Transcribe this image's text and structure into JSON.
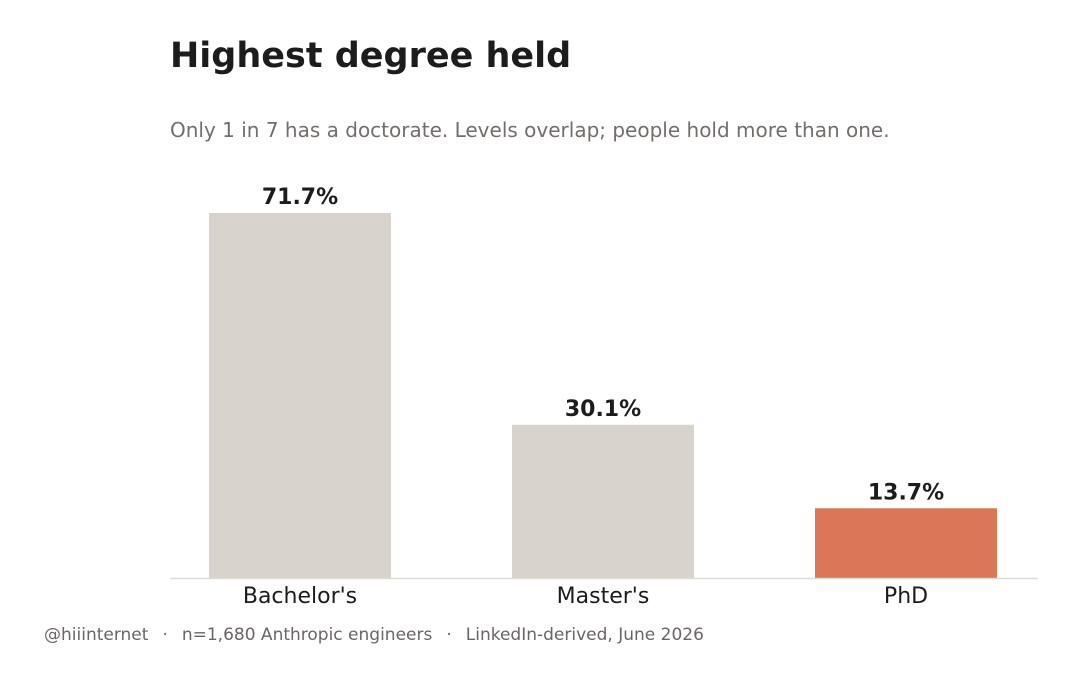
{
  "chart_data": {
    "type": "bar",
    "title": "Highest degree held",
    "subtitle": "Only 1 in 7 has a doctorate. Levels overlap; people hold more than one.",
    "categories": [
      "Bachelor's",
      "Master's",
      "PhD"
    ],
    "values": [
      71.7,
      30.1,
      13.7
    ],
    "value_labels": [
      "71.7%",
      "30.1%",
      "13.7%"
    ],
    "unit": "%",
    "xlabel": "",
    "ylabel": "",
    "ylim": [
      0,
      71.7
    ],
    "grid": false,
    "highlight_category": "PhD",
    "colors": {
      "default": "#d8d4cd",
      "highlight": "#d97757",
      "baseline": "#dedad4",
      "label": "#1c1c1c"
    }
  },
  "footer": {
    "handle": "@hiiinternet",
    "sample": "n=1,680 Anthropic engineers",
    "source": "LinkedIn-derived, June 2026",
    "separator": "·"
  }
}
